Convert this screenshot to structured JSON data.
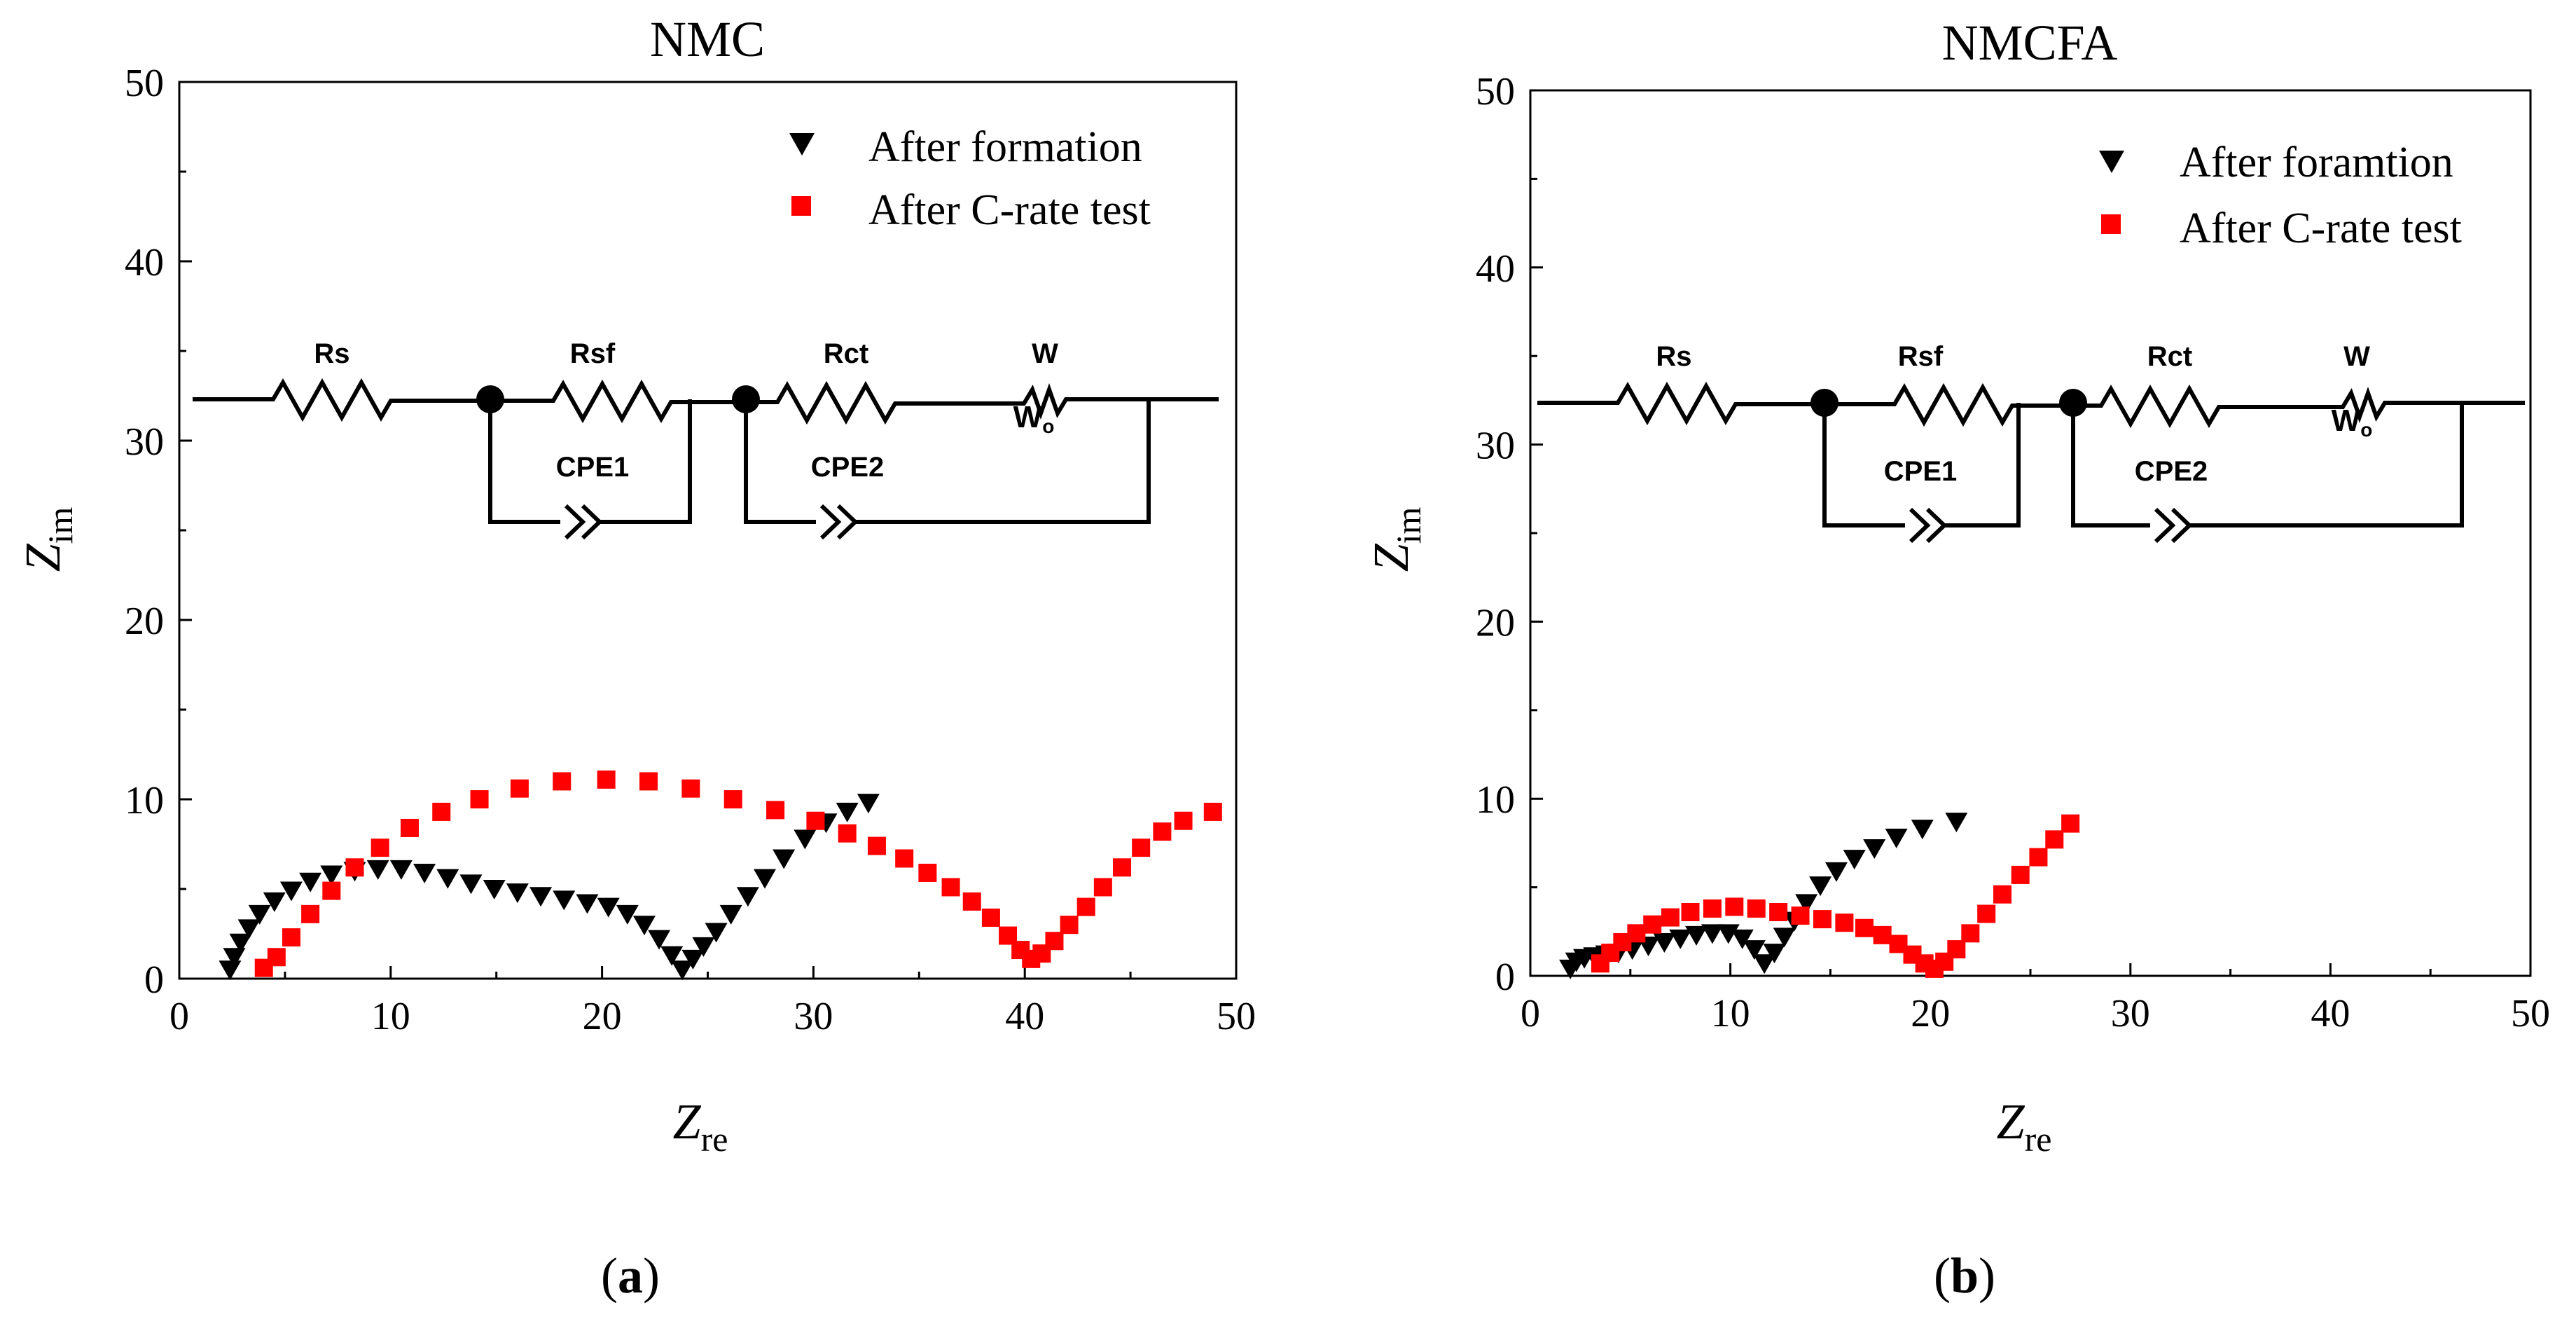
{
  "chart_data": [
    {
      "type": "scatter",
      "title": "NMC",
      "xlabel": "Z",
      "xlabel_sub": "re",
      "ylabel": "Z",
      "ylabel_sub": "im",
      "xlim": [
        0,
        50
      ],
      "ylim": [
        0,
        50
      ],
      "xticks": [
        "0",
        "10",
        "20",
        "30",
        "40",
        "50"
      ],
      "yticks": [
        "0",
        "10",
        "20",
        "30",
        "40",
        "50"
      ],
      "panel_label": "a",
      "legend_position": "top-right",
      "circuit": {
        "resistor_labels": [
          "Rs",
          "Rsf",
          "Rct",
          "W"
        ],
        "cpe_labels": [
          "CPE1",
          "CPE2"
        ],
        "warburg_symbol": "W",
        "warburg_sub": "o"
      },
      "series": [
        {
          "name": "After formation",
          "marker": "triangle-down",
          "color": "#000000",
          "points": [
            [
              2.4,
              0.5
            ],
            [
              2.6,
              1.2
            ],
            [
              2.9,
              2.0
            ],
            [
              3.3,
              2.8
            ],
            [
              3.8,
              3.6
            ],
            [
              4.5,
              4.3
            ],
            [
              5.3,
              4.9
            ],
            [
              6.2,
              5.4
            ],
            [
              7.2,
              5.8
            ],
            [
              8.3,
              6.0
            ],
            [
              9.4,
              6.1
            ],
            [
              10.5,
              6.1
            ],
            [
              11.6,
              5.9
            ],
            [
              12.7,
              5.6
            ],
            [
              13.8,
              5.3
            ],
            [
              14.9,
              5.0
            ],
            [
              16.0,
              4.8
            ],
            [
              17.1,
              4.6
            ],
            [
              18.2,
              4.4
            ],
            [
              19.3,
              4.2
            ],
            [
              20.3,
              4.0
            ],
            [
              21.2,
              3.6
            ],
            [
              22.0,
              3.0
            ],
            [
              22.7,
              2.2
            ],
            [
              23.3,
              1.3
            ],
            [
              23.8,
              0.5
            ],
            [
              24.3,
              1.1
            ],
            [
              24.8,
              1.8
            ],
            [
              25.4,
              2.6
            ],
            [
              26.1,
              3.6
            ],
            [
              26.9,
              4.6
            ],
            [
              27.7,
              5.6
            ],
            [
              28.6,
              6.7
            ],
            [
              29.6,
              7.8
            ],
            [
              30.6,
              8.7
            ],
            [
              31.6,
              9.3
            ],
            [
              32.6,
              9.8
            ]
          ]
        },
        {
          "name": "After C-rate test",
          "marker": "square",
          "color": "#ff0000",
          "points": [
            [
              4.0,
              0.6
            ],
            [
              4.6,
              1.2
            ],
            [
              5.3,
              2.3
            ],
            [
              6.2,
              3.6
            ],
            [
              7.2,
              4.9
            ],
            [
              8.3,
              6.2
            ],
            [
              9.5,
              7.3
            ],
            [
              10.9,
              8.4
            ],
            [
              12.4,
              9.3
            ],
            [
              14.2,
              10.0
            ],
            [
              16.1,
              10.6
            ],
            [
              18.1,
              11.0
            ],
            [
              20.2,
              11.1
            ],
            [
              22.2,
              11.0
            ],
            [
              24.2,
              10.6
            ],
            [
              26.2,
              10.0
            ],
            [
              28.2,
              9.4
            ],
            [
              30.1,
              8.8
            ],
            [
              31.6,
              8.1
            ],
            [
              33.0,
              7.4
            ],
            [
              34.3,
              6.7
            ],
            [
              35.4,
              5.9
            ],
            [
              36.5,
              5.1
            ],
            [
              37.5,
              4.3
            ],
            [
              38.4,
              3.4
            ],
            [
              39.2,
              2.4
            ],
            [
              39.8,
              1.6
            ],
            [
              40.3,
              1.1
            ],
            [
              40.8,
              1.4
            ],
            [
              41.4,
              2.1
            ],
            [
              42.1,
              3.0
            ],
            [
              42.9,
              4.0
            ],
            [
              43.7,
              5.1
            ],
            [
              44.6,
              6.2
            ],
            [
              45.5,
              7.3
            ],
            [
              46.5,
              8.2
            ],
            [
              47.5,
              8.8
            ],
            [
              48.9,
              9.3
            ]
          ]
        }
      ]
    },
    {
      "type": "scatter",
      "title": "NMCFA",
      "xlabel": "Z",
      "xlabel_sub": "re",
      "ylabel": "Z",
      "ylabel_sub": "im",
      "xlim": [
        0,
        50
      ],
      "ylim": [
        0,
        50
      ],
      "xticks": [
        "0",
        "10",
        "20",
        "30",
        "40",
        "50"
      ],
      "yticks": [
        "0",
        "10",
        "20",
        "30",
        "40",
        "50"
      ],
      "panel_label": "b",
      "legend_position": "top-right",
      "circuit": {
        "resistor_labels": [
          "Rs",
          "Rsf",
          "Rct",
          "W"
        ],
        "cpe_labels": [
          "CPE1",
          "CPE2"
        ],
        "warburg_symbol": "W",
        "warburg_sub": "o"
      },
      "series": [
        {
          "name": "After foramtion",
          "marker": "triangle-down",
          "color": "#000000",
          "points": [
            [
              2.0,
              0.4
            ],
            [
              2.3,
              0.8
            ],
            [
              2.7,
              1.0
            ],
            [
              3.2,
              1.1
            ],
            [
              3.8,
              1.2
            ],
            [
              4.4,
              1.3
            ],
            [
              5.1,
              1.5
            ],
            [
              5.9,
              1.7
            ],
            [
              6.7,
              1.9
            ],
            [
              7.5,
              2.1
            ],
            [
              8.3,
              2.3
            ],
            [
              9.1,
              2.4
            ],
            [
              9.9,
              2.4
            ],
            [
              10.6,
              2.1
            ],
            [
              11.2,
              1.5
            ],
            [
              11.7,
              0.7
            ],
            [
              12.2,
              1.3
            ],
            [
              12.7,
              2.2
            ],
            [
              13.2,
              3.1
            ],
            [
              13.8,
              4.1
            ],
            [
              14.5,
              5.1
            ],
            [
              15.3,
              5.9
            ],
            [
              16.2,
              6.6
            ],
            [
              17.2,
              7.2
            ],
            [
              18.3,
              7.8
            ],
            [
              19.6,
              8.3
            ],
            [
              21.3,
              8.7
            ]
          ]
        },
        {
          "name": "After C-rate test",
          "marker": "square",
          "color": "#ff0000",
          "points": [
            [
              3.5,
              0.7
            ],
            [
              4.0,
              1.3
            ],
            [
              4.6,
              1.9
            ],
            [
              5.3,
              2.4
            ],
            [
              6.1,
              2.9
            ],
            [
              7.0,
              3.3
            ],
            [
              8.0,
              3.6
            ],
            [
              9.1,
              3.8
            ],
            [
              10.2,
              3.9
            ],
            [
              11.3,
              3.8
            ],
            [
              12.4,
              3.6
            ],
            [
              13.5,
              3.4
            ],
            [
              14.6,
              3.2
            ],
            [
              15.7,
              3.0
            ],
            [
              16.7,
              2.7
            ],
            [
              17.6,
              2.3
            ],
            [
              18.4,
              1.8
            ],
            [
              19.1,
              1.2
            ],
            [
              19.7,
              0.7
            ],
            [
              20.2,
              0.4
            ],
            [
              20.7,
              0.8
            ],
            [
              21.3,
              1.5
            ],
            [
              22.0,
              2.4
            ],
            [
              22.8,
              3.5
            ],
            [
              23.6,
              4.6
            ],
            [
              24.5,
              5.7
            ],
            [
              25.4,
              6.7
            ],
            [
              26.2,
              7.7
            ],
            [
              27.0,
              8.6
            ]
          ]
        }
      ]
    }
  ]
}
